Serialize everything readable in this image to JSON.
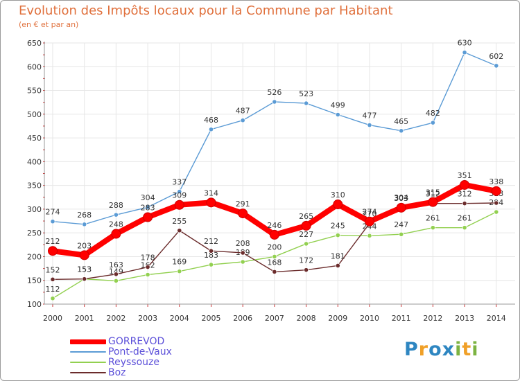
{
  "chart_data": {
    "type": "line",
    "title": "Evolution des Impôts locaux pour la Commune par Habitant",
    "subtitle": "(en € et par an)",
    "xlabel": "",
    "ylabel": "",
    "ylim": [
      100,
      650
    ],
    "yticks": [
      "100",
      "150",
      "200",
      "250",
      "300",
      "350",
      "400",
      "450",
      "500",
      "550",
      "600",
      "650"
    ],
    "categories": [
      "2000",
      "2001",
      "2002",
      "2003",
      "2004",
      "2005",
      "2006",
      "2007",
      "2008",
      "2009",
      "2010",
      "2011",
      "2012",
      "2013",
      "2014"
    ],
    "grid": true,
    "legend_position": "bottom-left",
    "series": [
      {
        "name": "Pont-de-Vaux",
        "color": "#5b9bd5",
        "values": [
          274,
          268,
          288,
          304,
          337,
          468,
          487,
          526,
          523,
          499,
          477,
          465,
          482,
          630,
          602
        ]
      },
      {
        "name": "Reyssouze",
        "color": "#92d050",
        "values": [
          112,
          153,
          149,
          162,
          169,
          183,
          189,
          200,
          227,
          245,
          244,
          247,
          261,
          261,
          294
        ]
      },
      {
        "name": "Boz",
        "color": "#6b2c2c",
        "values": [
          152,
          153,
          163,
          178,
          255,
          212,
          208,
          168,
          172,
          181,
          270,
          304,
          312,
          312,
          313
        ]
      },
      {
        "name": "GORREVOD",
        "color": "#ff0000",
        "values": [
          212,
          203,
          248,
          283,
          309,
          314,
          291,
          246,
          265,
          310,
          274,
          303,
          315,
          351,
          338
        ]
      }
    ]
  },
  "legend": [
    {
      "name": "GORREVOD",
      "color": "#ff0000",
      "text_color": "#5b4fd9"
    },
    {
      "name": "Pont-de-Vaux",
      "color": "#5b9bd5",
      "text_color": "#5b4fd9"
    },
    {
      "name": "Reyssouze",
      "color": "#92d050",
      "text_color": "#5b4fd9"
    },
    {
      "name": "Boz",
      "color": "#6b2c2c",
      "text_color": "#5b4fd9"
    }
  ],
  "logo": {
    "text": "Proxiti",
    "letters": [
      "P",
      "r",
      "o",
      "x",
      "i",
      "t",
      "i"
    ],
    "letter_colors": [
      "#2e86c1",
      "#f0a028",
      "#2e86c1",
      "#2e86c1",
      "#7cb342",
      "#f0a028",
      "#7cb342"
    ]
  }
}
